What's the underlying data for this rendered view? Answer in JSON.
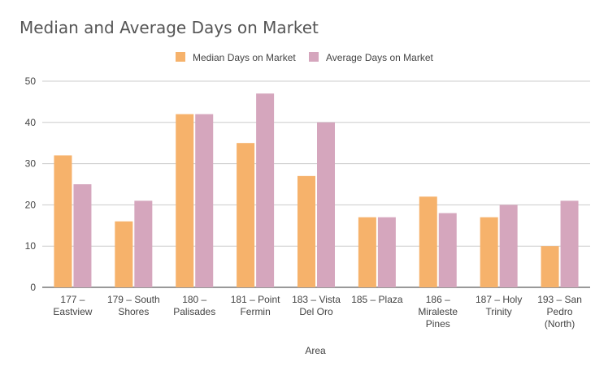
{
  "chart_data": {
    "type": "bar",
    "title": "Median and Average Days on Market",
    "xlabel": "Area",
    "ylabel": "",
    "ylim": [
      0,
      50
    ],
    "yticks": [
      0,
      10,
      20,
      30,
      40,
      50
    ],
    "grid": true,
    "legend_position": "top",
    "categories": [
      [
        "177 –",
        "Eastview"
      ],
      [
        "179 – South",
        "Shores"
      ],
      [
        "180 –",
        "Palisades"
      ],
      [
        "181 – Point",
        "Fermin"
      ],
      [
        "183 – Vista",
        "Del Oro"
      ],
      [
        "185 – Plaza"
      ],
      [
        "186 –",
        "Miraleste",
        "Pines"
      ],
      [
        "187 – Holy",
        "Trinity"
      ],
      [
        "193 – San",
        "Pedro",
        "(North)"
      ]
    ],
    "series": [
      {
        "name": "Median Days on Market",
        "color": "#f6b26b",
        "values": [
          32,
          16,
          42,
          35,
          27,
          17,
          22,
          17,
          10
        ]
      },
      {
        "name": "Average Days on Market",
        "color": "#d5a6bd",
        "values": [
          25,
          21,
          42,
          47,
          40,
          17,
          18,
          20,
          21
        ]
      }
    ]
  }
}
